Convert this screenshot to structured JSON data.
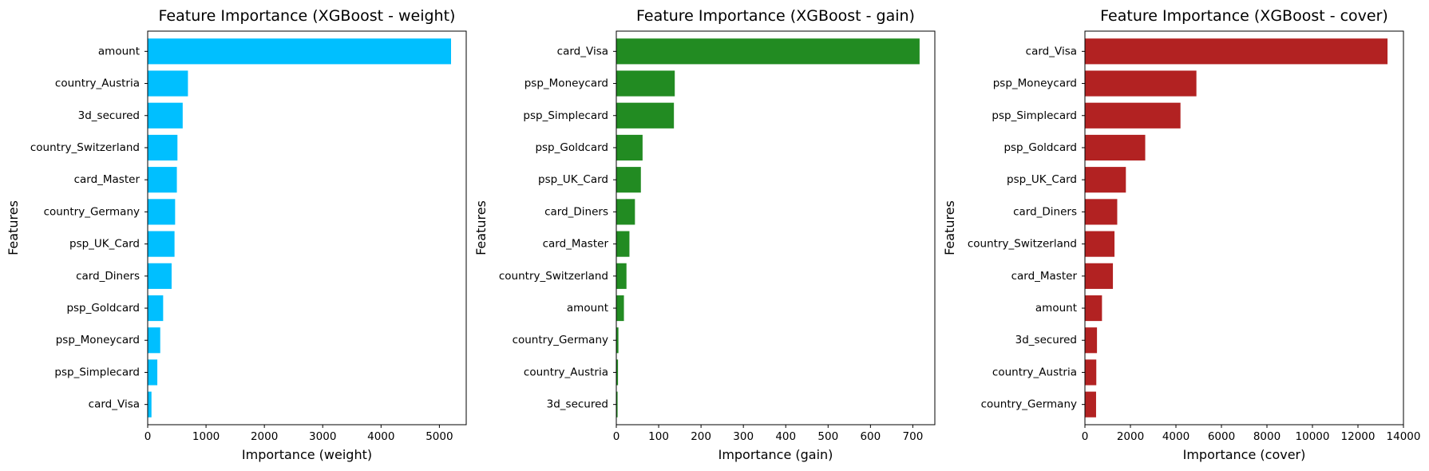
{
  "chart_data": [
    {
      "type": "bar",
      "orientation": "horizontal",
      "title": "Feature Importance (XGBoost - weight)",
      "xlabel": "Importance (weight)",
      "ylabel": "Features",
      "color": "#00bfff",
      "xlim": [
        0,
        5460
      ],
      "xticks": [
        0,
        1000,
        2000,
        3000,
        4000,
        5000
      ],
      "xticklabels": [
        "0",
        "1000",
        "2000",
        "3000",
        "4000",
        "5000"
      ],
      "categories": [
        "amount",
        "country_Austria",
        "3d_secured",
        "country_Switzerland",
        "card_Master",
        "country_Germany",
        "psp_UK_Card",
        "card_Diners",
        "psp_Goldcard",
        "psp_Moneycard",
        "psp_Simplecard",
        "card_Visa"
      ],
      "values": [
        5200,
        690,
        600,
        510,
        500,
        470,
        460,
        410,
        265,
        215,
        165,
        65
      ]
    },
    {
      "type": "bar",
      "orientation": "horizontal",
      "title": "Feature Importance (XGBoost - gain)",
      "xlabel": "Importance (gain)",
      "ylabel": "Features",
      "color": "#228b22",
      "xlim": [
        0,
        752
      ],
      "xticks": [
        0,
        100,
        200,
        300,
        400,
        500,
        600,
        700
      ],
      "xticklabels": [
        "0",
        "100",
        "200",
        "300",
        "400",
        "500",
        "600",
        "700"
      ],
      "categories": [
        "card_Visa",
        "psp_Moneycard",
        "psp_Simplecard",
        "psp_Goldcard",
        "psp_UK_Card",
        "card_Diners",
        "card_Master",
        "country_Switzerland",
        "amount",
        "country_Germany",
        "country_Austria",
        "3d_secured"
      ],
      "values": [
        716,
        138,
        136,
        62,
        58,
        44,
        31,
        24,
        18,
        5,
        4,
        3
      ]
    },
    {
      "type": "bar",
      "orientation": "horizontal",
      "title": "Feature Importance (XGBoost - cover)",
      "xlabel": "Importance (cover)",
      "ylabel": "Features",
      "color": "#b22222",
      "xlim": [
        0,
        14000
      ],
      "xticks": [
        0,
        2000,
        4000,
        6000,
        8000,
        10000,
        12000,
        14000
      ],
      "xticklabels": [
        "0",
        "2000",
        "4000",
        "6000",
        "8000",
        "10000",
        "12000",
        "14000"
      ],
      "categories": [
        "card_Visa",
        "psp_Moneycard",
        "psp_Simplecard",
        "psp_Goldcard",
        "psp_UK_Card",
        "card_Diners",
        "country_Switzerland",
        "card_Master",
        "amount",
        "3d_secured",
        "country_Austria",
        "country_Germany"
      ],
      "values": [
        13300,
        4900,
        4200,
        2650,
        1800,
        1420,
        1300,
        1230,
        750,
        530,
        500,
        490
      ]
    }
  ]
}
